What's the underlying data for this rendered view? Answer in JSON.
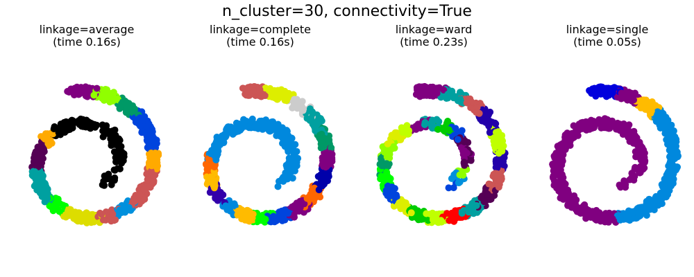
{
  "suptitle": "n_cluster=30, connectivity=True",
  "chart_data": [
    {
      "type": "scatter",
      "title_line1": "linkage=average",
      "title_line2": "(time 0.16s)",
      "axes": "off",
      "seed": 11,
      "palette": [
        "#000000",
        "#0000c8",
        "#0090dd",
        "#00a0a0",
        "#00aa00",
        "#00ff00",
        "#90ff00",
        "#dddd00",
        "#ffaa00",
        "#ff0000",
        "#dd0000",
        "#cc5555",
        "#800080",
        "#550055",
        "#cccccc",
        "#009966",
        "#0044dd",
        "#ff6600",
        "#33cc33",
        "#c0ff00"
      ]
    },
    {
      "type": "scatter",
      "title_line1": "linkage=complete",
      "title_line2": "(time 0.16s)",
      "axes": "off",
      "seed": 23,
      "palette": [
        "#0088dd",
        "#000000",
        "#00a0a0",
        "#800080",
        "#0000aa",
        "#00cc00",
        "#ddee00",
        "#ff0000",
        "#ffbb00",
        "#cc5555",
        "#550055",
        "#00ff00",
        "#cccccc",
        "#3300aa",
        "#009966",
        "#ff6600",
        "#66ff00",
        "#0044dd"
      ]
    },
    {
      "type": "scatter",
      "title_line1": "linkage=ward",
      "title_line2": "(time 0.23s)",
      "axes": "off",
      "seed": 37,
      "palette": [
        "#0090dd",
        "#000000",
        "#ff0000",
        "#550055",
        "#ddee00",
        "#0000c8",
        "#2200aa",
        "#ffaa00",
        "#00aa00",
        "#00a0a0",
        "#cccccc",
        "#800080",
        "#00cc00",
        "#cc5555",
        "#90ff00",
        "#c0ff00",
        "#ff5500",
        "#00ff00",
        "#009966",
        "#0044dd"
      ]
    },
    {
      "type": "scatter",
      "title_line1": "linkage=single",
      "title_line2": "(time 0.05s)",
      "axes": "off",
      "seed": 51,
      "palette": [
        "#0088dd",
        "#800080",
        "#000000",
        "#0000dd",
        "#00a0a0",
        "#550055",
        "#ff0000",
        "#00ff00",
        "#ffbb00",
        "#00cc00",
        "#cccccc"
      ]
    }
  ]
}
